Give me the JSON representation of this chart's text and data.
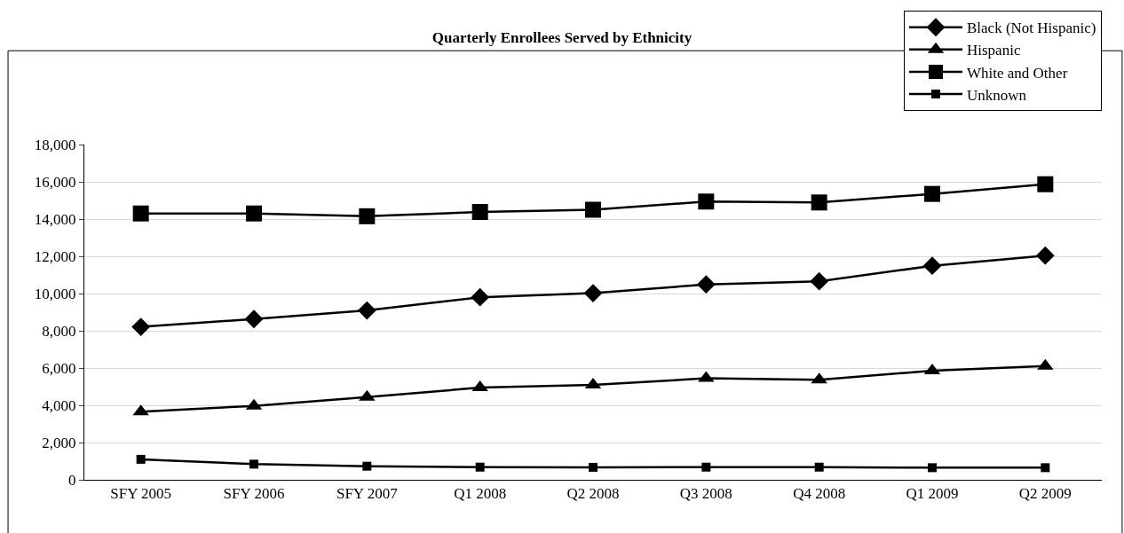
{
  "chart_data": {
    "type": "line",
    "title": "Quarterly Enrollees Served by Ethnicity",
    "categories": [
      "SFY 2005",
      "SFY 2006",
      "SFY 2007",
      "Q1 2008",
      "Q2 2008",
      "Q3 2008",
      "Q4 2008",
      "Q1 2009",
      "Q2 2009"
    ],
    "series": [
      {
        "name": "Black (Not Hispanic)",
        "color": "#000000",
        "marker": "diamond",
        "values": [
          8210,
          8630,
          9090,
          9800,
          10020,
          10490,
          10660,
          11490,
          12040
        ]
      },
      {
        "name": "Hispanic",
        "color": "#000000",
        "marker": "triangle",
        "values": [
          3650,
          3970,
          4440,
          4950,
          5090,
          5450,
          5370,
          5860,
          6110
        ]
      },
      {
        "name": "White and Other",
        "color": "#000000",
        "marker": "square",
        "values": [
          14300,
          14300,
          14150,
          14380,
          14500,
          14940,
          14890,
          15350,
          15870
        ]
      },
      {
        "name": "Unknown",
        "color": "#000000",
        "marker": "square",
        "values": [
          1100,
          840,
          730,
          680,
          670,
          680,
          680,
          650,
          650
        ]
      }
    ],
    "ylim": [
      0,
      18000
    ],
    "yticks": [
      {
        "value": 0,
        "label": "0"
      },
      {
        "value": 2000,
        "label": "2,000"
      },
      {
        "value": 4000,
        "label": "4,000"
      },
      {
        "value": 6000,
        "label": "6,000"
      },
      {
        "value": 8000,
        "label": "8,000"
      },
      {
        "value": 10000,
        "label": "10,000"
      },
      {
        "value": 12000,
        "label": "12,000"
      },
      {
        "value": 14000,
        "label": "14,000"
      },
      {
        "value": 16000,
        "label": "16,000"
      },
      {
        "value": 18000,
        "label": "18,000"
      }
    ],
    "grid": "y",
    "legend": "top right",
    "line_style": "solid"
  }
}
